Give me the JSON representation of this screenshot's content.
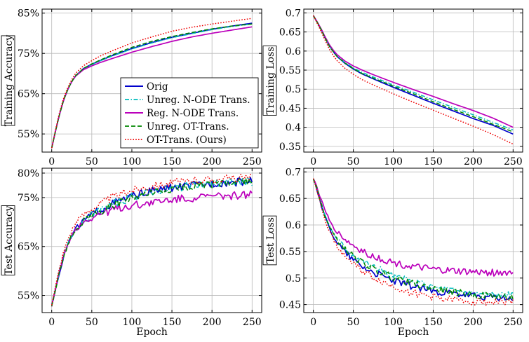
{
  "chart_data": [
    {
      "type": "line",
      "ylabel": "Training Accuracy",
      "xlabel": "",
      "xlim": [
        -12,
        262
      ],
      "ylim": [
        50.5,
        86
      ],
      "xticks": [
        0,
        50,
        100,
        150,
        200,
        250
      ],
      "yticks": [
        55,
        65,
        75,
        85
      ],
      "ytick_labels": [
        "55%",
        "65%",
        "75%",
        "85%"
      ],
      "grid": true,
      "legend_position": "bottom-right",
      "series": [
        {
          "name": "Orig",
          "color": "#0000cc",
          "style": "solid",
          "x": [
            0,
            5,
            10,
            15,
            20,
            25,
            30,
            40,
            50,
            60,
            75,
            100,
            125,
            150,
            175,
            200,
            225,
            250
          ],
          "y": [
            51.5,
            56,
            60,
            63.5,
            66,
            68,
            69.5,
            71.3,
            72.3,
            73.2,
            74.4,
            76.2,
            77.7,
            79.0,
            80.0,
            81.0,
            81.8,
            82.5
          ]
        },
        {
          "name": "Unreg. N-ODE Trans.",
          "color": "#00bcbc",
          "style": "dashdot",
          "x": [
            0,
            5,
            10,
            15,
            20,
            25,
            30,
            40,
            50,
            60,
            75,
            100,
            125,
            150,
            175,
            200,
            225,
            250
          ],
          "y": [
            51.5,
            56,
            60,
            63.5,
            66,
            68,
            69.5,
            71.2,
            72.2,
            73.1,
            74.3,
            76.1,
            77.6,
            78.9,
            79.9,
            80.9,
            81.7,
            82.3
          ]
        },
        {
          "name": "Reg. N-ODE Trans.",
          "color": "#bb00bb",
          "style": "solid",
          "x": [
            0,
            5,
            10,
            15,
            20,
            25,
            30,
            40,
            50,
            60,
            75,
            100,
            125,
            150,
            175,
            200,
            225,
            250
          ],
          "y": [
            51.5,
            56,
            60,
            63.5,
            66,
            68,
            69.4,
            71.0,
            71.9,
            72.7,
            73.7,
            75.3,
            76.7,
            78.0,
            79.1,
            80.0,
            80.8,
            81.6
          ]
        },
        {
          "name": "Unreg. OT-Trans.",
          "color": "#008800",
          "style": "dashed",
          "x": [
            0,
            5,
            10,
            15,
            20,
            25,
            30,
            40,
            50,
            60,
            75,
            100,
            125,
            150,
            175,
            200,
            225,
            250
          ],
          "y": [
            51.5,
            56,
            60,
            63.5,
            66,
            68,
            69.5,
            71.3,
            72.4,
            73.3,
            74.6,
            76.5,
            78.0,
            79.2,
            80.2,
            81.1,
            81.8,
            82.3
          ]
        },
        {
          "name": "OT-Trans. (Ours)",
          "color": "#ee0000",
          "style": "dotted",
          "x": [
            0,
            5,
            10,
            15,
            20,
            25,
            30,
            40,
            50,
            60,
            75,
            100,
            125,
            150,
            175,
            200,
            225,
            250
          ],
          "y": [
            51.5,
            56.3,
            60.5,
            64,
            66.5,
            68.5,
            70.1,
            72.0,
            73.2,
            74.3,
            75.6,
            77.6,
            79.1,
            80.5,
            81.5,
            82.3,
            83.0,
            83.7
          ]
        }
      ]
    },
    {
      "type": "line",
      "ylabel": "Training Loss",
      "xlabel": "",
      "xlim": [
        -12,
        262
      ],
      "ylim": [
        0.335,
        0.71
      ],
      "xticks": [
        0,
        50,
        100,
        150,
        200,
        250
      ],
      "yticks": [
        0.35,
        0.4,
        0.45,
        0.5,
        0.55,
        0.6,
        0.65,
        0.7
      ],
      "ytick_labels": [
        "0.35",
        "0.4",
        "0.45",
        "0.5",
        "0.55",
        "0.6",
        "0.65",
        "0.7"
      ],
      "grid": true,
      "series": [
        {
          "name": "Orig",
          "color": "#0000cc",
          "style": "solid",
          "x": [
            0,
            5,
            10,
            15,
            20,
            25,
            30,
            40,
            50,
            60,
            75,
            100,
            125,
            150,
            175,
            200,
            225,
            250
          ],
          "y": [
            0.693,
            0.675,
            0.655,
            0.633,
            0.613,
            0.598,
            0.585,
            0.567,
            0.553,
            0.541,
            0.527,
            0.505,
            0.484,
            0.463,
            0.443,
            0.423,
            0.405,
            0.382
          ]
        },
        {
          "name": "Unreg. N-ODE Trans.",
          "color": "#00bcbc",
          "style": "dashdot",
          "x": [
            0,
            5,
            10,
            15,
            20,
            25,
            30,
            40,
            50,
            60,
            75,
            100,
            125,
            150,
            175,
            200,
            225,
            250
          ],
          "y": [
            0.693,
            0.675,
            0.655,
            0.633,
            0.613,
            0.598,
            0.586,
            0.569,
            0.556,
            0.545,
            0.532,
            0.511,
            0.492,
            0.472,
            0.452,
            0.433,
            0.413,
            0.393
          ]
        },
        {
          "name": "Reg. N-ODE Trans.",
          "color": "#bb00bb",
          "style": "solid",
          "x": [
            0,
            5,
            10,
            15,
            20,
            25,
            30,
            40,
            50,
            60,
            75,
            100,
            125,
            150,
            175,
            200,
            225,
            250
          ],
          "y": [
            0.693,
            0.676,
            0.657,
            0.636,
            0.617,
            0.602,
            0.59,
            0.573,
            0.561,
            0.551,
            0.538,
            0.518,
            0.499,
            0.481,
            0.462,
            0.444,
            0.424,
            0.4
          ]
        },
        {
          "name": "Unreg. OT-Trans.",
          "color": "#008800",
          "style": "dashed",
          "x": [
            0,
            5,
            10,
            15,
            20,
            25,
            30,
            40,
            50,
            60,
            75,
            100,
            125,
            150,
            175,
            200,
            225,
            250
          ],
          "y": [
            0.693,
            0.675,
            0.655,
            0.633,
            0.613,
            0.598,
            0.585,
            0.568,
            0.554,
            0.542,
            0.529,
            0.508,
            0.488,
            0.467,
            0.447,
            0.428,
            0.408,
            0.388
          ]
        },
        {
          "name": "OT-Trans. (Ours)",
          "color": "#ee0000",
          "style": "dotted",
          "x": [
            0,
            5,
            10,
            15,
            20,
            25,
            30,
            40,
            50,
            60,
            75,
            100,
            125,
            150,
            175,
            200,
            225,
            250
          ],
          "y": [
            0.693,
            0.672,
            0.65,
            0.627,
            0.605,
            0.588,
            0.574,
            0.554,
            0.539,
            0.526,
            0.511,
            0.488,
            0.466,
            0.445,
            0.424,
            0.403,
            0.381,
            0.356
          ]
        }
      ]
    },
    {
      "type": "line",
      "ylabel": "Test Accuracy",
      "xlabel": "Epoch",
      "xlim": [
        -12,
        262
      ],
      "ylim": [
        51.5,
        81
      ],
      "xticks": [
        0,
        50,
        100,
        150,
        200,
        250
      ],
      "yticks": [
        55,
        65,
        75,
        80
      ],
      "ytick_labels": [
        "55%",
        "65%",
        "75%",
        "80%"
      ],
      "grid": true,
      "series": [
        {
          "name": "Orig",
          "color": "#0000cc",
          "style": "solid",
          "x": [
            0,
            5,
            10,
            15,
            20,
            25,
            30,
            40,
            50,
            60,
            75,
            100,
            125,
            150,
            175,
            200,
            225,
            250
          ],
          "y": [
            53,
            56.5,
            60,
            63,
            65.5,
            67.2,
            68.6,
            70.4,
            71.5,
            72.4,
            73.7,
            75.2,
            76.3,
            77.0,
            77.4,
            77.9,
            78.1,
            78.3
          ]
        },
        {
          "name": "Unreg. N-ODE Trans.",
          "color": "#00bcbc",
          "style": "dashdot",
          "x": [
            0,
            5,
            10,
            15,
            20,
            25,
            30,
            40,
            50,
            60,
            75,
            100,
            125,
            150,
            175,
            200,
            225,
            250
          ],
          "y": [
            53,
            56.5,
            60,
            63,
            65.5,
            67.2,
            68.6,
            70.3,
            71.4,
            72.3,
            73.6,
            75.1,
            76.2,
            76.9,
            77.4,
            77.9,
            78.1,
            78.2
          ]
        },
        {
          "name": "Reg. N-ODE Trans.",
          "color": "#bb00bb",
          "style": "solid",
          "x": [
            0,
            5,
            10,
            15,
            20,
            25,
            30,
            40,
            50,
            60,
            75,
            100,
            125,
            150,
            175,
            200,
            225,
            250
          ],
          "y": [
            53,
            56.5,
            60,
            63,
            65.5,
            67.2,
            68.5,
            70.0,
            70.9,
            71.6,
            72.4,
            73.4,
            74.0,
            74.5,
            74.9,
            75.2,
            75.4,
            75.6
          ]
        },
        {
          "name": "Unreg. OT-Trans.",
          "color": "#008800",
          "style": "dashed",
          "x": [
            0,
            5,
            10,
            15,
            20,
            25,
            30,
            40,
            50,
            60,
            75,
            100,
            125,
            150,
            175,
            200,
            225,
            250
          ],
          "y": [
            53,
            56.5,
            60,
            63,
            65.5,
            67.2,
            68.6,
            70.3,
            71.3,
            72.1,
            73.3,
            74.8,
            75.9,
            76.7,
            77.3,
            77.8,
            78.1,
            78.3
          ]
        },
        {
          "name": "OT-Trans. (Ours)",
          "color": "#ee0000",
          "style": "dotted",
          "x": [
            0,
            5,
            10,
            15,
            20,
            25,
            30,
            40,
            50,
            60,
            75,
            100,
            125,
            150,
            175,
            200,
            225,
            250
          ],
          "y": [
            53.2,
            57,
            60.8,
            64,
            66.5,
            68.3,
            69.8,
            71.6,
            72.8,
            73.7,
            75.0,
            76.5,
            77.4,
            78.0,
            78.4,
            78.7,
            78.9,
            79.0
          ]
        }
      ]
    },
    {
      "type": "line",
      "ylabel": "Test Loss",
      "xlabel": "Epoch",
      "xlim": [
        -12,
        262
      ],
      "ylim": [
        0.435,
        0.707
      ],
      "xticks": [
        0,
        50,
        100,
        150,
        200,
        250
      ],
      "yticks": [
        0.45,
        0.5,
        0.55,
        0.6,
        0.65,
        0.7
      ],
      "ytick_labels": [
        "0.45",
        "0.5",
        "0.55",
        "0.6",
        "0.65",
        "0.7"
      ],
      "grid": true,
      "series": [
        {
          "name": "Orig",
          "color": "#0000cc",
          "style": "solid",
          "x": [
            0,
            5,
            10,
            15,
            20,
            25,
            30,
            40,
            50,
            60,
            75,
            100,
            125,
            150,
            175,
            200,
            225,
            250
          ],
          "y": [
            0.688,
            0.665,
            0.637,
            0.613,
            0.595,
            0.58,
            0.567,
            0.549,
            0.535,
            0.524,
            0.511,
            0.495,
            0.484,
            0.476,
            0.47,
            0.466,
            0.463,
            0.461
          ]
        },
        {
          "name": "Unreg. N-ODE Trans.",
          "color": "#00bcbc",
          "style": "dashdot",
          "x": [
            0,
            5,
            10,
            15,
            20,
            25,
            30,
            40,
            50,
            60,
            75,
            100,
            125,
            150,
            175,
            200,
            225,
            250
          ],
          "y": [
            0.688,
            0.666,
            0.64,
            0.617,
            0.6,
            0.586,
            0.574,
            0.557,
            0.544,
            0.534,
            0.521,
            0.504,
            0.492,
            0.483,
            0.477,
            0.472,
            0.469,
            0.467
          ]
        },
        {
          "name": "Reg. N-ODE Trans.",
          "color": "#bb00bb",
          "style": "solid",
          "x": [
            0,
            5,
            10,
            15,
            20,
            25,
            30,
            40,
            50,
            60,
            75,
            100,
            125,
            150,
            175,
            200,
            225,
            250
          ],
          "y": [
            0.688,
            0.669,
            0.646,
            0.625,
            0.609,
            0.597,
            0.587,
            0.572,
            0.561,
            0.552,
            0.541,
            0.529,
            0.521,
            0.516,
            0.513,
            0.511,
            0.51,
            0.51
          ]
        },
        {
          "name": "Unreg. OT-Trans.",
          "color": "#008800",
          "style": "dashed",
          "x": [
            0,
            5,
            10,
            15,
            20,
            25,
            30,
            40,
            50,
            60,
            75,
            100,
            125,
            150,
            175,
            200,
            225,
            250
          ],
          "y": [
            0.688,
            0.666,
            0.639,
            0.615,
            0.597,
            0.583,
            0.571,
            0.554,
            0.541,
            0.53,
            0.517,
            0.501,
            0.489,
            0.48,
            0.474,
            0.469,
            0.466,
            0.464
          ]
        },
        {
          "name": "OT-Trans. (Ours)",
          "color": "#ee0000",
          "style": "dotted",
          "x": [
            0,
            5,
            10,
            15,
            20,
            25,
            30,
            40,
            50,
            60,
            75,
            100,
            125,
            150,
            175,
            200,
            225,
            250
          ],
          "y": [
            0.688,
            0.663,
            0.633,
            0.608,
            0.589,
            0.574,
            0.56,
            0.541,
            0.526,
            0.515,
            0.501,
            0.484,
            0.472,
            0.464,
            0.459,
            0.456,
            0.455,
            0.455
          ]
        }
      ]
    }
  ]
}
